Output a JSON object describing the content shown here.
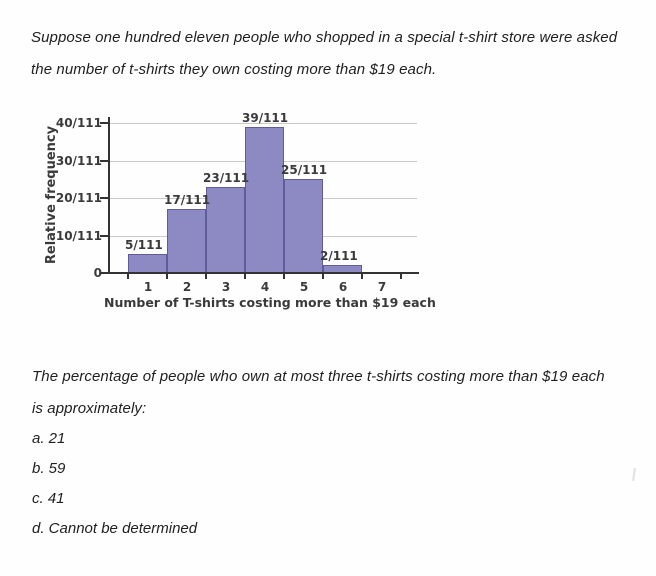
{
  "intro": {
    "lines": [
      "Suppose one hundred eleven people who shopped in a special t-shirt store were asked",
      "the number of t-shirts they own costing more than $19 each."
    ]
  },
  "chart_data": {
    "type": "bar",
    "title": "",
    "xlabel": "Number of T-shirts costing more than $19 each",
    "ylabel": "Relative frequency",
    "categories": [
      1,
      2,
      3,
      4,
      5,
      6
    ],
    "values": [
      5,
      17,
      23,
      39,
      25,
      2
    ],
    "denominator": 111,
    "bar_labels": [
      "5/111",
      "17/111",
      "23/111",
      "39/111",
      "25/111",
      "2/111"
    ],
    "y_ticks": [
      {
        "value": 0,
        "label": "0"
      },
      {
        "value": 10,
        "label": "10/111"
      },
      {
        "value": 20,
        "label": "20/111"
      },
      {
        "value": 30,
        "label": "30/111"
      },
      {
        "value": 40,
        "label": "40/111"
      }
    ],
    "x_ticks": [
      "1",
      "2",
      "3",
      "4",
      "5",
      "6",
      "7"
    ],
    "ylim": [
      0,
      40
    ],
    "xlim": [
      0,
      7.5
    ],
    "grid": "horizontal",
    "legend": "none",
    "colors": {
      "bar_fill": "#8d8ac3",
      "bar_border": "#5f5c99",
      "gridline": "#cacaca",
      "axis": "#333333",
      "text": "#3a3a3a"
    }
  },
  "question": {
    "lines": [
      "The percentage of people who own at most three t-shirts costing more than $19 each",
      "is approximately:"
    ]
  },
  "options": [
    "a. 21",
    "b. 59",
    "c. 41",
    "d. Cannot be determined"
  ]
}
